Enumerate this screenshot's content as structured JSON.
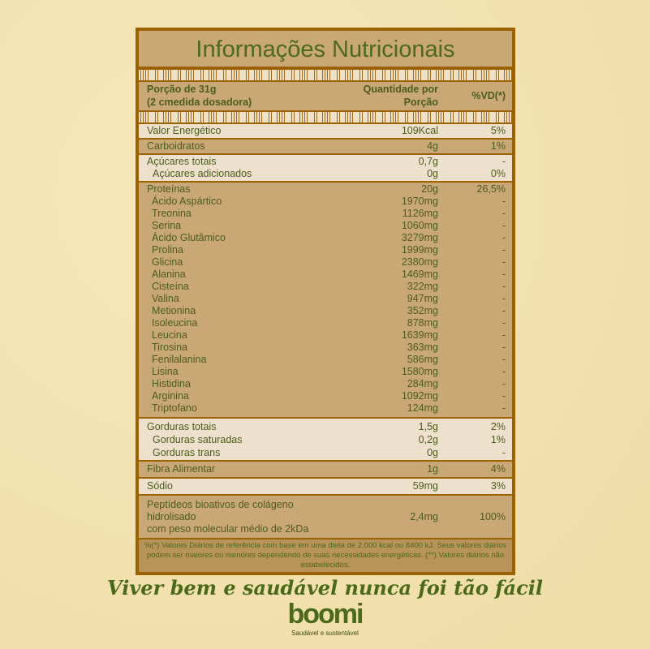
{
  "title": "Informações Nutricionais",
  "header": {
    "portion_line1": "Porção de 31g",
    "portion_line2": "(2 cmedida dosadora)",
    "qty_line1": "Quantidade por",
    "qty_line2": "Porção",
    "vd": "%VD(*)"
  },
  "rows": {
    "energy": {
      "name": "Valor Energético",
      "qty": "109Kcal",
      "vd": "5%"
    },
    "carbs": {
      "name": "Carboidratos",
      "qty": "4g",
      "vd": "1%"
    },
    "sugars": {
      "name": "Açúcares totais",
      "qty": "0,7g",
      "vd": "-"
    },
    "added_sugars": {
      "name": "Açúcares adicionados",
      "qty": "0g",
      "vd": "0%"
    },
    "protein": {
      "name": "Proteínas",
      "qty": "20g",
      "vd": "26,5%"
    },
    "amino": [
      {
        "name": "Ácido Aspártico",
        "qty": "1970mg",
        "vd": "-"
      },
      {
        "name": "Treonina",
        "qty": "1126mg",
        "vd": "-"
      },
      {
        "name": "Serina",
        "qty": "1060mg",
        "vd": "-"
      },
      {
        "name": "Ácido Glutâmico",
        "qty": "3279mg",
        "vd": "-"
      },
      {
        "name": "Prolina",
        "qty": "1999mg",
        "vd": "-"
      },
      {
        "name": "Glicina",
        "qty": "2380mg",
        "vd": "-"
      },
      {
        "name": "Alanina",
        "qty": "1469mg",
        "vd": "-"
      },
      {
        "name": "Cisteína",
        "qty": "322mg",
        "vd": "-"
      },
      {
        "name": "Valina",
        "qty": "947mg",
        "vd": "-"
      },
      {
        "name": "Metionina",
        "qty": "352mg",
        "vd": "-"
      },
      {
        "name": "Isoleucina",
        "qty": "878mg",
        "vd": "-"
      },
      {
        "name": "Leucina",
        "qty": "1639mg",
        "vd": "-"
      },
      {
        "name": "Tirosina",
        "qty": "363mg",
        "vd": "-"
      },
      {
        "name": "Fenilalanina",
        "qty": "586mg",
        "vd": "-"
      },
      {
        "name": "Lisina",
        "qty": "1580mg",
        "vd": "-"
      },
      {
        "name": "Histidina",
        "qty": "284mg",
        "vd": "-"
      },
      {
        "name": "Arginina",
        "qty": "1092mg",
        "vd": "-"
      },
      {
        "name": "Triptofano",
        "qty": "124mg",
        "vd": "-"
      }
    ],
    "fat": {
      "name": "Gorduras totais",
      "qty": "1,5g",
      "vd": "2%"
    },
    "sat_fat": {
      "name": "Gorduras saturadas",
      "qty": "0,2g",
      "vd": "1%"
    },
    "trans_fat": {
      "name": "Gorduras trans",
      "qty": "0g",
      "vd": "-"
    },
    "fiber": {
      "name": "Fibra Alimentar",
      "qty": "1g",
      "vd": "4%"
    },
    "sodium": {
      "name": "Sódio",
      "qty": "59mg",
      "vd": "3%"
    },
    "peptides": {
      "name_line1": "Peptídeos bioativos de colágeno hidrolisado",
      "name_line2": "com peso molecular médio de 2kDa",
      "qty": "2,4mg",
      "vd": "100%"
    }
  },
  "footnote": "%(*) Valores Diários de referência com base em uma dieta de 2.000 kcal ou 8400 kJ. Seus valores diários podem ser maiores ou menores dependendo de suas necessidades energéticas. (**) Valores diários não estabelecidos.",
  "slogan": "Viver bem e saudável nunca foi tão fácil",
  "brand": {
    "logo": "boomi",
    "tagline": "Saudável e sustentável"
  },
  "colors": {
    "border": "#9c6200",
    "tan": "#c9a876",
    "light": "#ede1cd",
    "text": "#4c5c1c",
    "background": "#f3e3b0"
  }
}
